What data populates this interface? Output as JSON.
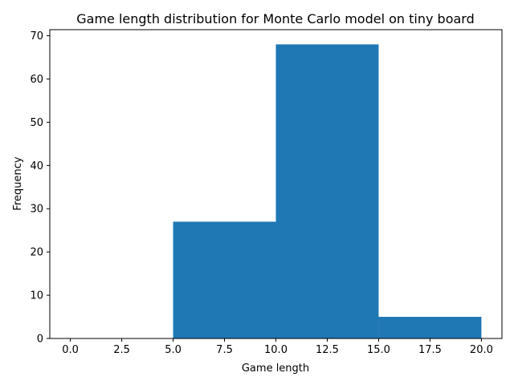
{
  "chart_data": {
    "type": "bar",
    "title": "Game length distribution for Monte Carlo model on tiny board",
    "xlabel": "Game length",
    "ylabel": "Frequency",
    "bins": [
      [
        0,
        5
      ],
      [
        5,
        10
      ],
      [
        10,
        15
      ],
      [
        15,
        20
      ]
    ],
    "values": [
      0,
      27,
      68,
      5
    ],
    "xlim": [
      -1,
      21
    ],
    "ylim": [
      0,
      71.4
    ],
    "xticks": [
      0,
      2.5,
      5,
      7.5,
      10,
      12.5,
      15,
      17.5,
      20
    ],
    "xtick_labels": [
      "0.0",
      "2.5",
      "5.0",
      "7.5",
      "10.0",
      "12.5",
      "15.0",
      "17.5",
      "20.0"
    ],
    "yticks": [
      0,
      10,
      20,
      30,
      40,
      50,
      60,
      70
    ],
    "ytick_labels": [
      "0",
      "10",
      "20",
      "30",
      "40",
      "50",
      "60",
      "70"
    ],
    "bar_color": "#1f77b4",
    "grid": false,
    "legend": null
  }
}
